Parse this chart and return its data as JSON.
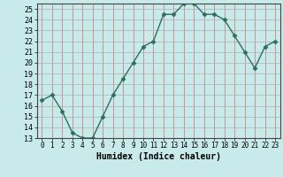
{
  "x": [
    0,
    1,
    2,
    3,
    4,
    5,
    6,
    7,
    8,
    9,
    10,
    11,
    12,
    13,
    14,
    15,
    16,
    17,
    18,
    19,
    20,
    21,
    22,
    23
  ],
  "y": [
    16.5,
    17.0,
    15.5,
    13.5,
    13.0,
    13.0,
    15.0,
    17.0,
    18.5,
    20.0,
    21.5,
    22.0,
    24.5,
    24.5,
    25.5,
    25.5,
    24.5,
    24.5,
    24.0,
    22.5,
    21.0,
    19.5,
    21.5,
    22.0
  ],
  "xlabel": "Humidex (Indice chaleur)",
  "ylim": [
    13,
    25.5
  ],
  "xlim": [
    -0.5,
    23.5
  ],
  "yticks": [
    13,
    14,
    15,
    16,
    17,
    18,
    19,
    20,
    21,
    22,
    23,
    24,
    25
  ],
  "line_color": "#2d6e5e",
  "bg_color": "#c8eaea",
  "grid_color_major": "#b0b0b0",
  "grid_color_minor": "#d8d8d8",
  "marker_size": 2.5,
  "line_width": 1.0,
  "tick_fontsize": 6,
  "xlabel_fontsize": 7
}
